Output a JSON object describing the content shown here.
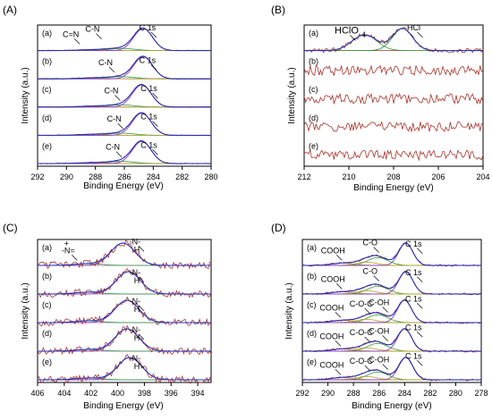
{
  "chart_data": [
    {
      "type": "line",
      "panel_label": "(A)",
      "xlabel": "Binding Energy (eV)",
      "ylabel": "Intensity (a.u.)",
      "xlim": [
        292,
        280
      ],
      "x_ticks": [
        "292",
        "290",
        "288",
        "286",
        "284",
        "282",
        "280"
      ],
      "grid": false,
      "series": [
        {
          "name": "(a)",
          "values": [
            {
              "x": 284.7,
              "y": 1.0
            }
          ],
          "annotations": [
            "C=N",
            "C-N",
            "C 1s"
          ]
        },
        {
          "name": "(b)",
          "values": [
            {
              "x": 284.7,
              "y": 1.0
            }
          ],
          "annotations": [
            "C-N",
            "C 1s"
          ]
        },
        {
          "name": "(c)",
          "values": [
            {
              "x": 284.8,
              "y": 1.0
            }
          ],
          "annotations": [
            "C-N",
            "C 1s"
          ]
        },
        {
          "name": "(d)",
          "values": [
            {
              "x": 284.8,
              "y": 1.0
            }
          ],
          "annotations": [
            "C-N",
            "C 1s"
          ]
        },
        {
          "name": "(e)",
          "values": [
            {
              "x": 284.8,
              "y": 1.0
            }
          ],
          "annotations": [
            "C-N",
            "C 1s"
          ]
        }
      ]
    },
    {
      "type": "line",
      "panel_label": "(B)",
      "xlabel": "Binding Energy (eV)",
      "ylabel": "Intensity (a.u.)",
      "xlim": [
        212,
        204
      ],
      "x_ticks": [
        "212",
        "210",
        "208",
        "206",
        "204"
      ],
      "grid": false,
      "series": [
        {
          "name": "(a)",
          "values": [
            {
              "x": 209.3,
              "y": 0.75
            },
            {
              "x": 207.6,
              "y": 1.0
            }
          ],
          "annotations": [
            "HClO",
            "4",
            "HCl"
          ]
        },
        {
          "name": "(b)",
          "values": []
        },
        {
          "name": "(c)",
          "values": []
        },
        {
          "name": "(d)",
          "values": []
        },
        {
          "name": "(e)",
          "values": []
        }
      ]
    },
    {
      "type": "line",
      "panel_label": "(C)",
      "xlabel": "Binding Energy (eV)",
      "ylabel": "Intensity (a.u.)",
      "xlim": [
        406,
        393
      ],
      "x_ticks": [
        "406",
        "404",
        "402",
        "400",
        "398",
        "396",
        "394"
      ],
      "grid": false,
      "series": [
        {
          "name": "(a)",
          "values": [
            {
              "x": 399.6,
              "y": 1.0
            }
          ],
          "annotations": [
            "+",
            "-N=",
            "-N-",
            "H"
          ]
        },
        {
          "name": "(b)",
          "values": [
            {
              "x": 399.2,
              "y": 1.0
            }
          ],
          "annotations": [
            "-N-",
            "H"
          ]
        },
        {
          "name": "(c)",
          "values": [
            {
              "x": 399.3,
              "y": 1.0
            }
          ],
          "annotations": [
            "-N-",
            "H"
          ]
        },
        {
          "name": "(d)",
          "values": [
            {
              "x": 399.3,
              "y": 1.0
            }
          ],
          "annotations": [
            "-N-",
            "H"
          ]
        },
        {
          "name": "(e)",
          "values": [
            {
              "x": 399.1,
              "y": 1.0
            }
          ],
          "annotations": [
            "-N-",
            "H"
          ]
        }
      ]
    },
    {
      "type": "line",
      "panel_label": "(D)",
      "xlabel": "Binding Energy (eV)",
      "ylabel": "Intensity (a.u.)",
      "xlim": [
        292,
        278
      ],
      "x_ticks": [
        "292",
        "290",
        "288",
        "286",
        "284",
        "282",
        "280",
        "278"
      ],
      "grid": false,
      "series": [
        {
          "name": "(a)",
          "values": [
            {
              "x": 283.9,
              "y": 1.0
            }
          ],
          "annotations": [
            "COOH",
            "C-O",
            "C 1s"
          ]
        },
        {
          "name": "(b)",
          "values": [
            {
              "x": 283.9,
              "y": 1.0
            }
          ],
          "annotations": [
            "COOH",
            "C-O",
            "C 1s"
          ]
        },
        {
          "name": "(c)",
          "values": [
            {
              "x": 284.0,
              "y": 1.0
            }
          ],
          "annotations": [
            "COOH",
            "C-O-C",
            "C-OH",
            "C 1s"
          ]
        },
        {
          "name": "(d)",
          "values": [
            {
              "x": 284.0,
              "y": 1.0
            }
          ],
          "annotations": [
            "COOH",
            "C-O-C",
            "C-OH",
            "C 1s"
          ]
        },
        {
          "name": "(e)",
          "values": [
            {
              "x": 283.9,
              "y": 1.0
            }
          ],
          "annotations": [
            "COOH",
            "C-O-C",
            "C-OH",
            "C 1s"
          ]
        }
      ]
    }
  ],
  "colors": {
    "raw": "#a9332b",
    "fit": "#1d2fc0",
    "component_main": "#8b3fb5",
    "component_a": "#2f9a3a",
    "component_b": "#b5a022",
    "baseline": "#a46ad6",
    "frame": "#000000"
  }
}
